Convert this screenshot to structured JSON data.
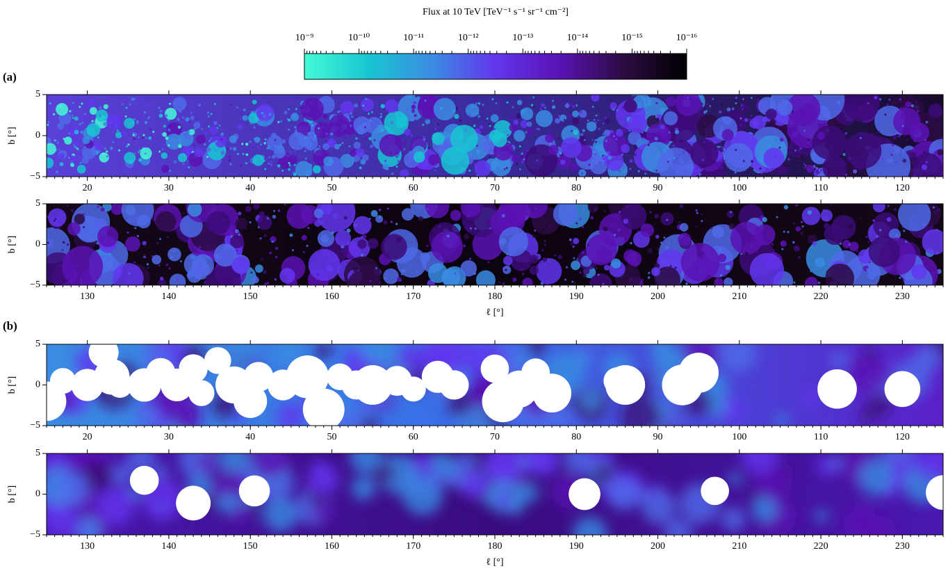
{
  "title": "Flux at 10 TeV  [TeV⁻¹ s⁻¹ sr⁻¹ cm⁻²]",
  "panel_labels": [
    "(a)",
    "(b)"
  ],
  "colorbar": {
    "scale": "log",
    "lim": [
      1e-09,
      1e-16
    ],
    "colors": [
      "#44fad6",
      "#18c6d2",
      "#3a8ce2",
      "#6236ee",
      "#5a12b4",
      "#2c0c44",
      "#000000"
    ],
    "ticks": [
      {
        "value": 1e-09,
        "label": "10⁻⁹"
      },
      {
        "value": 1e-10,
        "label": "10⁻¹⁰"
      },
      {
        "value": 1e-11,
        "label": "10⁻¹¹"
      },
      {
        "value": 1e-12,
        "label": "10⁻¹²"
      },
      {
        "value": 1e-13,
        "label": "10⁻¹³"
      },
      {
        "value": 1e-14,
        "label": "10⁻¹⁴"
      },
      {
        "value": 1e-15,
        "label": "10⁻¹⁵"
      },
      {
        "value": 1e-16,
        "label": "10⁻¹⁶"
      }
    ]
  },
  "chart_data": [
    {
      "type": "heatmap",
      "ylabel": "b [°]",
      "xlim": [
        15,
        125
      ],
      "ylim": [
        -5,
        5
      ],
      "xticks": [
        20,
        30,
        40,
        50,
        60,
        70,
        80,
        90,
        100,
        110,
        120
      ],
      "yticks": [
        {
          "value": -5,
          "label": "−5"
        },
        0,
        5
      ]
    },
    {
      "type": "heatmap",
      "ylabel": "b [°]",
      "xlabel": "ℓ [°]",
      "xlim": [
        125,
        235
      ],
      "ylim": [
        -5,
        5
      ],
      "xticks": [
        130,
        140,
        150,
        160,
        170,
        180,
        190,
        200,
        210,
        220,
        230
      ],
      "yticks": [
        {
          "value": -5,
          "label": "−5"
        },
        0,
        5
      ]
    },
    {
      "type": "heatmap",
      "ylabel": "b [°]",
      "xlim": [
        15,
        125
      ],
      "ylim": [
        -5,
        5
      ],
      "xticks": [
        20,
        30,
        40,
        50,
        60,
        70,
        80,
        90,
        100,
        110,
        120
      ],
      "yticks": [
        {
          "value": -5,
          "label": "−5"
        },
        0,
        5
      ]
    },
    {
      "type": "heatmap",
      "ylabel": "b [°]",
      "xlabel": "ℓ [°]",
      "xlim": [
        125,
        235
      ],
      "ylim": [
        -5,
        5
      ],
      "xticks": [
        130,
        140,
        150,
        160,
        170,
        180,
        190,
        200,
        210,
        220,
        230
      ],
      "yticks": [
        {
          "value": -5,
          "label": "−5"
        },
        0,
        5
      ]
    }
  ]
}
